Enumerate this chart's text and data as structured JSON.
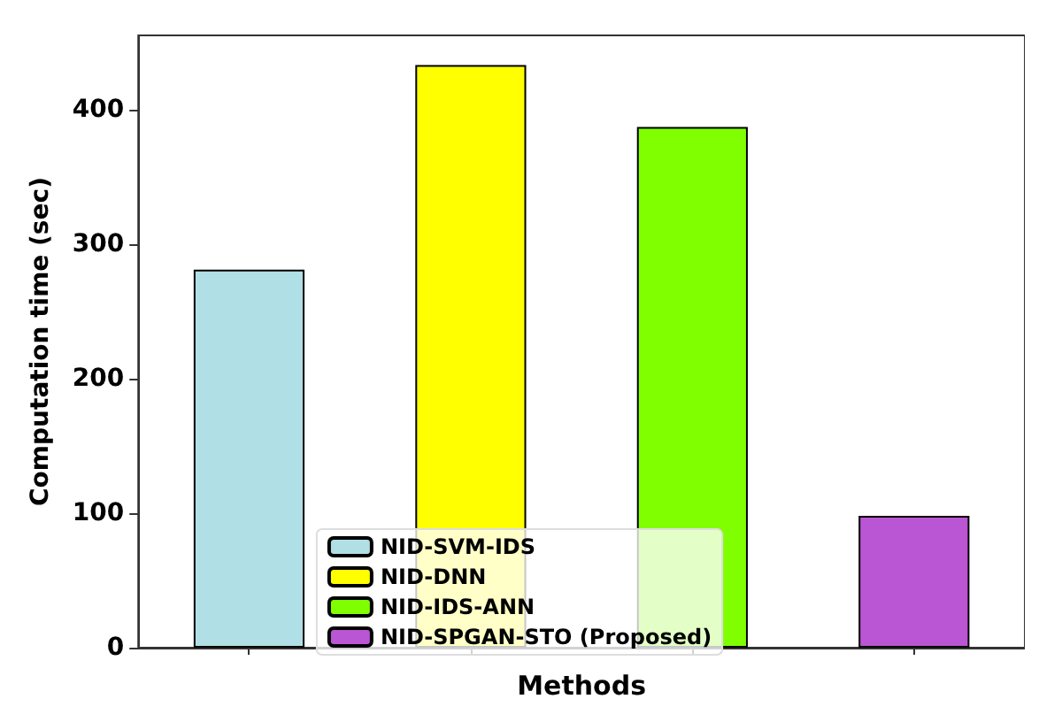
{
  "chart_data": {
    "type": "bar",
    "xlabel": "Methods",
    "ylabel": "Computation time (sec)",
    "categories": [
      null,
      null,
      null,
      null
    ],
    "series": [
      {
        "name": "NID-SVM-IDS",
        "color": "#b0dfe5",
        "values": [
          281,
          null,
          null,
          null
        ]
      },
      {
        "name": "NID-DNN",
        "color": "#ffff00",
        "values": [
          null,
          433,
          null,
          null
        ]
      },
      {
        "name": "NID-IDS-ANN",
        "color": "#7fff00",
        "values": [
          null,
          null,
          387,
          null
        ]
      },
      {
        "name": "NID-SPGAN-STO (Proposed)",
        "color": "#ba55d3",
        "values": [
          null,
          null,
          null,
          98
        ]
      }
    ],
    "stacked": true,
    "ylim": [
      0,
      455
    ],
    "yticks": [
      0,
      100,
      200,
      300,
      400
    ],
    "tick_labels": "y",
    "grid": false,
    "legend": "bottom"
  }
}
